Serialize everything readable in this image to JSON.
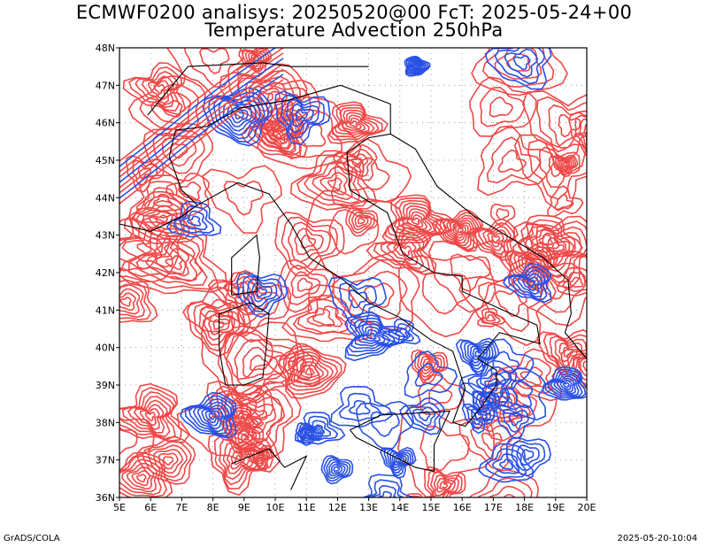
{
  "header": {
    "title_line1": "ECMWF0200 analisys: 20250520@00 FcT: 2025-05-24+00",
    "title_line2": "Temperature Advection 250hPa"
  },
  "map": {
    "lon_range": [
      5,
      20
    ],
    "lat_range": [
      36,
      48
    ],
    "lon_ticks": [
      "5E",
      "6E",
      "7E",
      "8E",
      "9E",
      "10E",
      "11E",
      "12E",
      "13E",
      "14E",
      "15E",
      "16E",
      "17E",
      "18E",
      "19E",
      "20E"
    ],
    "lat_ticks": [
      "36N",
      "37N",
      "38N",
      "39N",
      "40N",
      "41N",
      "42N",
      "43N",
      "44N",
      "45N",
      "46N",
      "47N",
      "48N"
    ],
    "colors": {
      "positive": "#f04848",
      "negative": "#2850e6",
      "coast": "#000000",
      "grid": "#888888"
    }
  },
  "footer": {
    "left": "GrADS/COLA",
    "right": "2025-05-20-10:04"
  }
}
